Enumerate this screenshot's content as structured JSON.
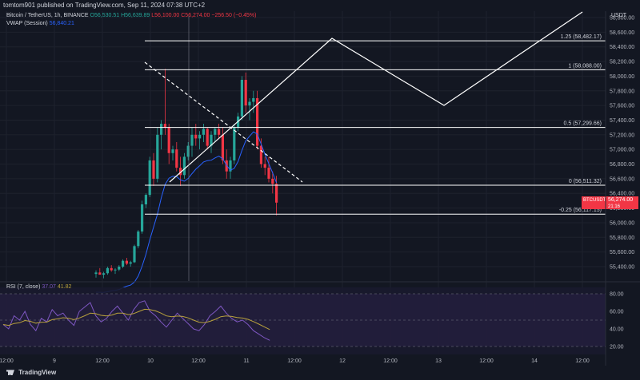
{
  "header": {
    "publish_line": "tomtom901 published on TradingView.com, Sep 11, 2024 07:38 UTC+2"
  },
  "legend": {
    "symbol": "Bitcoin / TetherUS, 1h, BINANCE",
    "o": "O56,530.51",
    "h": "H56,639.89",
    "l": "L56,100.00",
    "c": "C56,274.00",
    "chg": "−256.50 (−0.45%)",
    "vwap_label": "VWAP (Session)",
    "vwap_value": "56,840.21"
  },
  "price_axis": {
    "currency": "USDT",
    "ticks": [
      "58,800.00",
      "58,600.00",
      "58,400.00",
      "58,200.00",
      "58,000.00",
      "57,800.00",
      "57,600.00",
      "57,400.00",
      "57,200.00",
      "57,000.00",
      "56,800.00",
      "56,600.00",
      "56,400.00",
      "56,200.00",
      "56,000.00",
      "55,800.00",
      "55,600.00",
      "55,400.00"
    ],
    "ticker_tag": "BTCUSDT",
    "ticker_price": "56,274.00",
    "ticker_time": "21:16"
  },
  "fib_levels": [
    {
      "label": "1.25 (58,482.17)",
      "price": 58482.17
    },
    {
      "label": "1 (58,088.00)",
      "price": 58088.0
    },
    {
      "label": "0.5 (57,299.66)",
      "price": 57299.66
    },
    {
      "label": "0 (56,511.32)",
      "price": 56511.32
    },
    {
      "label": "-0.25 (56,117.15)",
      "price": 56117.15
    }
  ],
  "time_axis": {
    "labels": [
      "12:00",
      "9",
      "12:00",
      "10",
      "12:00",
      "11",
      "12:00",
      "12",
      "12:00",
      "13",
      "12:00",
      "14",
      "12:00"
    ]
  },
  "rsi": {
    "label": "RSI (7, close)",
    "v1": "37.07",
    "v2": "41.82",
    "ticks": [
      "80.00",
      "60.00",
      "40.00",
      "20.00"
    ]
  },
  "footer": {
    "brand": "TradingView"
  },
  "colors": {
    "up": "#26a69a",
    "down": "#f23645",
    "vwap": "#2962ff",
    "rsi": "#7e57c2",
    "rsi_ma": "#b8a13c"
  }
}
